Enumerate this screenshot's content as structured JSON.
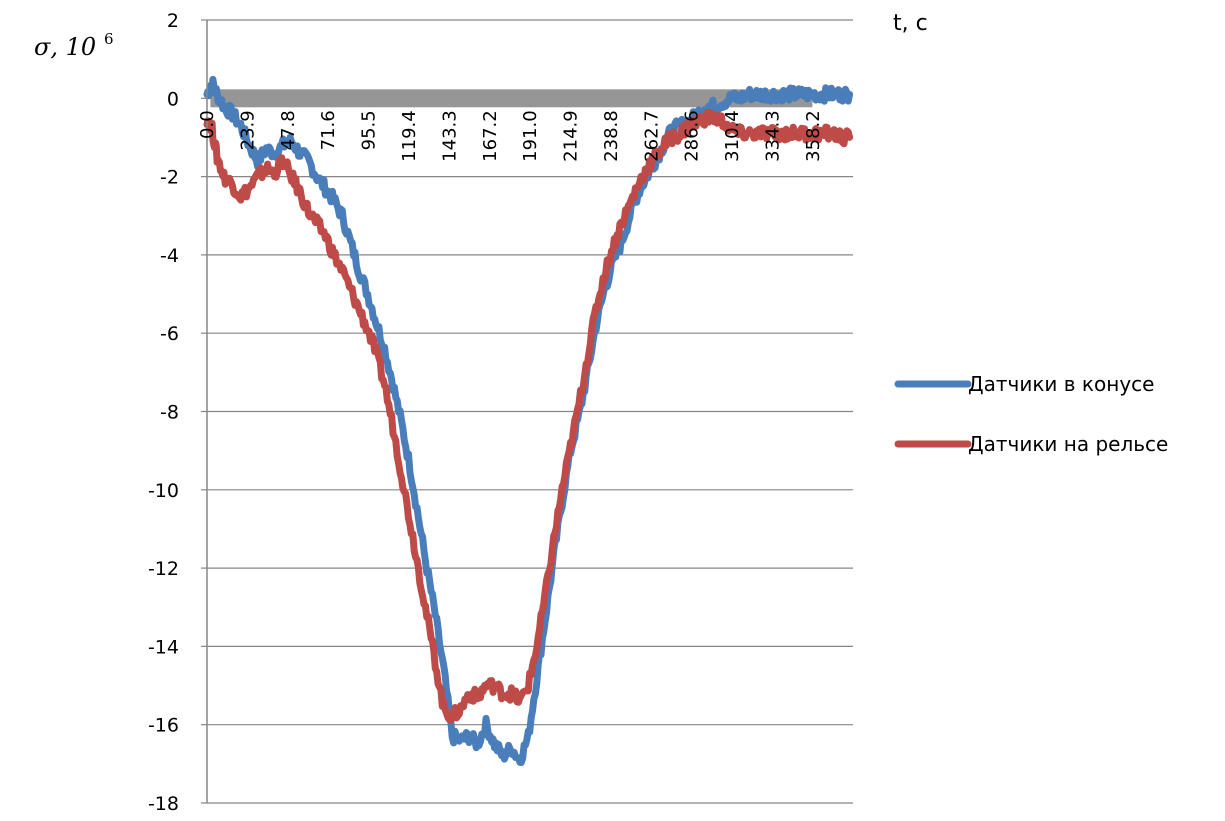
{
  "chart_data": {
    "type": "line",
    "title": "",
    "ylabel": "σ,  10",
    "ylabel_exponent": "6",
    "xlabel": "t, c",
    "ylim": [
      -18,
      2
    ],
    "xlim": [
      0,
      382
    ],
    "yticks": [
      2,
      0,
      -2,
      -4,
      -6,
      -8,
      -10,
      -12,
      -14,
      -16,
      -18
    ],
    "ytick_labels": [
      "2",
      "0",
      "-2",
      "-4",
      "-6",
      "-8",
      "-10",
      "-12",
      "-14",
      "-16",
      "-18"
    ],
    "xtick_labels": [
      "0.0",
      "23.9",
      "47.8",
      "71.6",
      "95.5",
      "119.4",
      "143.3",
      "167.2",
      "191.0",
      "214.9",
      "238.8",
      "262.7",
      "286.6",
      "310.4",
      "334.3",
      "358.2"
    ],
    "xticks": [
      0.0,
      23.9,
      47.8,
      71.6,
      95.5,
      119.4,
      143.3,
      167.2,
      191.0,
      214.9,
      238.8,
      262.7,
      286.6,
      310.4,
      334.3,
      358.2
    ],
    "grid": true,
    "legend_position": "right",
    "zero_band_color": "#969696",
    "series": [
      {
        "name": "Датчики в конусе",
        "color": "#4a7ebb",
        "x": [
          0,
          3,
          6,
          10,
          15,
          20,
          25,
          30,
          35,
          40,
          45,
          50,
          55,
          60,
          65,
          70,
          75,
          80,
          85,
          90,
          95,
          100,
          105,
          110,
          115,
          120,
          125,
          130,
          135,
          140,
          145,
          150,
          155,
          160,
          165,
          170,
          175,
          180,
          185,
          190,
          195,
          200,
          205,
          210,
          215,
          220,
          225,
          230,
          235,
          240,
          245,
          250,
          255,
          260,
          265,
          270,
          275,
          280,
          285,
          290,
          295,
          300,
          305,
          310,
          315,
          320,
          325,
          330,
          335,
          340,
          345,
          350,
          355,
          360,
          365,
          370,
          375,
          380
        ],
        "y": [
          0.1,
          0.4,
          0.1,
          -0.2,
          -0.4,
          -0.7,
          -1.2,
          -1.6,
          -1.3,
          -1.4,
          -1.2,
          -1.1,
          -1.4,
          -1.6,
          -2.0,
          -2.3,
          -2.6,
          -3.0,
          -3.7,
          -4.4,
          -5.0,
          -5.7,
          -6.4,
          -7.3,
          -8.3,
          -9.4,
          -10.7,
          -12.0,
          -13.2,
          -14.6,
          -16.3,
          -16.4,
          -16.3,
          -16.5,
          -16.0,
          -16.5,
          -16.8,
          -16.6,
          -16.9,
          -16.3,
          -14.8,
          -13.3,
          -11.7,
          -10.3,
          -9.0,
          -8.1,
          -7.0,
          -5.8,
          -4.9,
          -4.2,
          -3.7,
          -3.0,
          -2.4,
          -2.0,
          -1.6,
          -1.2,
          -0.8,
          -0.7,
          -0.6,
          -0.4,
          -0.2,
          -0.2,
          -0.1,
          0.0,
          0.0,
          0.1,
          0.1,
          0.1,
          0.1,
          0.1,
          0.1,
          0.1,
          0.1,
          0.1,
          0.1,
          0.1,
          0.1,
          0.1
        ]
      },
      {
        "name": "Датчики на рельсе",
        "color": "#be4b48",
        "x": [
          0,
          3,
          6,
          10,
          15,
          20,
          25,
          30,
          35,
          40,
          45,
          50,
          55,
          60,
          65,
          70,
          75,
          80,
          85,
          90,
          95,
          100,
          105,
          110,
          115,
          120,
          125,
          130,
          135,
          140,
          145,
          150,
          155,
          160,
          165,
          170,
          175,
          180,
          185,
          190,
          195,
          200,
          205,
          210,
          215,
          220,
          225,
          230,
          235,
          240,
          245,
          250,
          255,
          260,
          265,
          270,
          275,
          280,
          285,
          290,
          295,
          300,
          305,
          310,
          315,
          320,
          325,
          330,
          335,
          340,
          345,
          350,
          355,
          360,
          365,
          370,
          375,
          380
        ],
        "y": [
          -0.5,
          -0.8,
          -1.5,
          -2.0,
          -2.2,
          -2.5,
          -2.3,
          -2.0,
          -1.8,
          -1.9,
          -1.6,
          -2.0,
          -2.4,
          -2.9,
          -3.2,
          -3.5,
          -4.0,
          -4.4,
          -4.9,
          -5.4,
          -5.9,
          -6.5,
          -7.3,
          -8.4,
          -9.6,
          -10.8,
          -12.0,
          -13.2,
          -14.4,
          -15.6,
          -15.8,
          -15.6,
          -15.2,
          -15.3,
          -15.0,
          -15.0,
          -15.2,
          -15.2,
          -15.4,
          -15.0,
          -14.0,
          -12.7,
          -11.3,
          -10.0,
          -8.9,
          -7.8,
          -6.6,
          -5.4,
          -4.5,
          -3.8,
          -3.2,
          -2.7,
          -2.2,
          -1.8,
          -1.5,
          -1.2,
          -1.0,
          -0.9,
          -0.7,
          -0.6,
          -0.5,
          -0.5,
          -0.6,
          -0.8,
          -0.9,
          -0.9,
          -0.9,
          -0.9,
          -0.9,
          -0.9,
          -0.9,
          -0.9,
          -0.9,
          -0.9,
          -0.9,
          -0.9,
          -1.0,
          -1.0
        ]
      }
    ]
  }
}
